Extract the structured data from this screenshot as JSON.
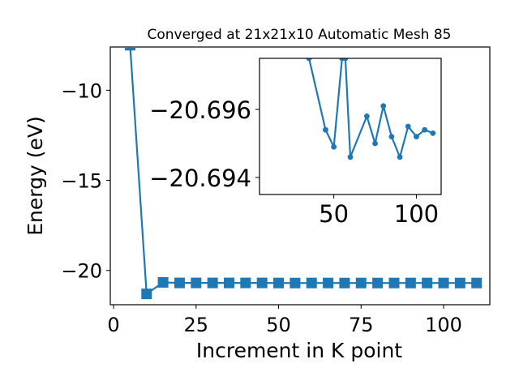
{
  "chart_data": [
    {
      "type": "line",
      "title": "Converged at 21x21x10 Automatic Mesh 85",
      "xlabel": "Increment in K point",
      "ylabel": "Energy (eV)",
      "xlim": [
        -1,
        114
      ],
      "ylim": [
        -21.9,
        -7.6
      ],
      "xticks": [
        0,
        25,
        50,
        75,
        100
      ],
      "yticks": [
        -10,
        -15,
        -20
      ],
      "grid": false,
      "marker": "square",
      "color": "#1f77b4",
      "series": [
        {
          "x": [
            5,
            10,
            15,
            20,
            25,
            30,
            35,
            40,
            45,
            50,
            55,
            60,
            65,
            70,
            75,
            80,
            85,
            90,
            95,
            100,
            105,
            110
          ],
          "values": [
            -7.5,
            -21.3,
            -20.66,
            -20.69,
            -20.69,
            -20.69,
            -20.69,
            -20.69,
            -20.69,
            -20.695,
            -20.697,
            -20.694,
            -20.695,
            -20.696,
            -20.695,
            -20.696,
            -20.695,
            -20.694,
            -20.695,
            -20.695,
            -20.695,
            -20.695
          ]
        }
      ]
    },
    {
      "type": "line",
      "title": "",
      "xlabel": "",
      "ylabel": "",
      "xlim": [
        5,
        115
      ],
      "ylim": [
        -20.6935,
        -20.6975
      ],
      "xticks": [
        50,
        100
      ],
      "yticks": [
        -20.696,
        -20.694
      ],
      "grid": false,
      "marker": "circle",
      "color": "#1f77b4",
      "series": [
        {
          "x": [
            35,
            45,
            50,
            55,
            57,
            60,
            70,
            75,
            80,
            85,
            90,
            95,
            100,
            105,
            110
          ],
          "values": [
            -20.6975,
            -20.6954,
            -20.6949,
            -20.6975,
            -20.6975,
            -20.6946,
            -20.6958,
            -20.695,
            -20.6961,
            -20.6952,
            -20.6946,
            -20.6955,
            -20.6952,
            -20.6954,
            -20.6953
          ]
        }
      ]
    }
  ]
}
